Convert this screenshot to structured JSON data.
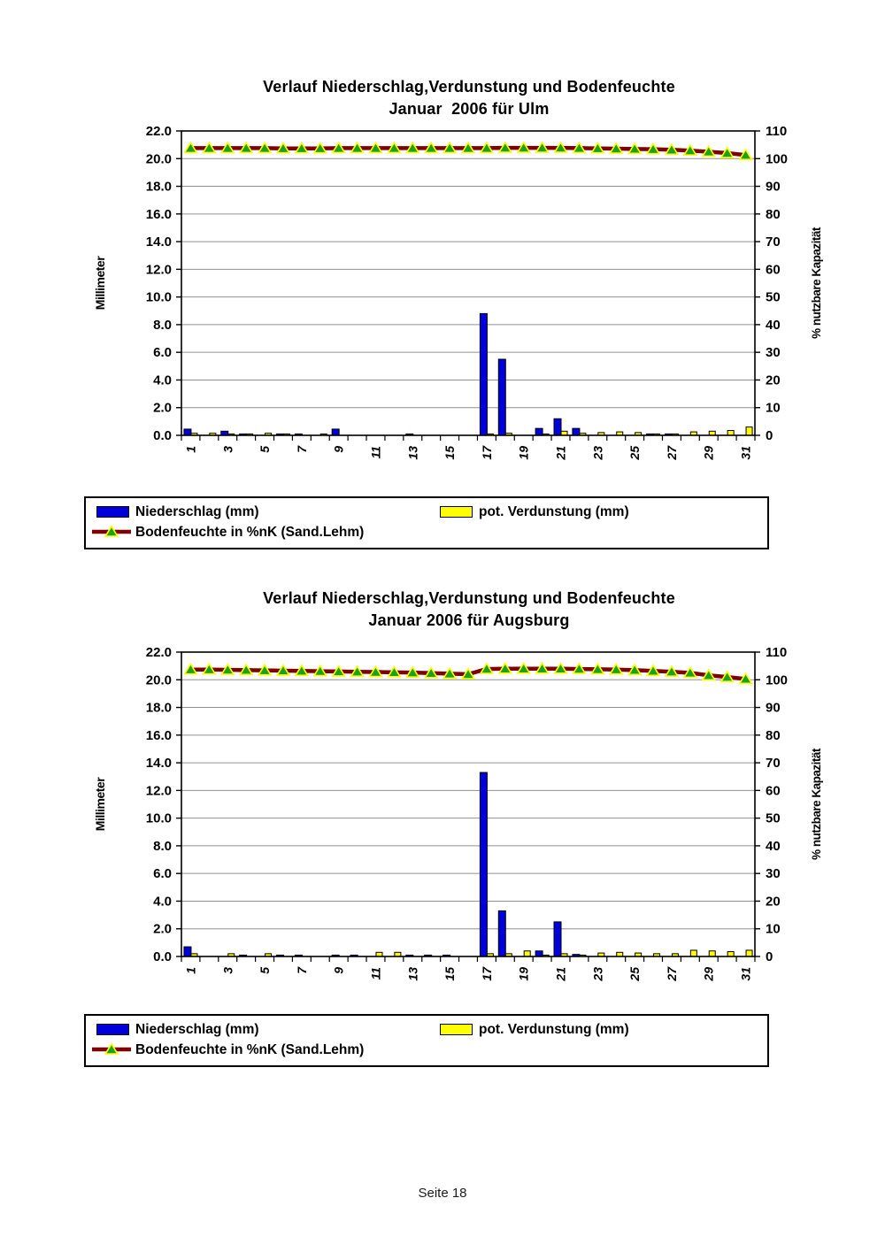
{
  "page": {
    "footer": "Seite 18"
  },
  "chart_data": [
    {
      "type": "bar",
      "title": "Verlauf Niederschlag,Verdunstung und Bodenfeuchte",
      "subtitle": "Januar  2006 für Ulm",
      "x": [
        1,
        2,
        3,
        4,
        5,
        6,
        7,
        8,
        9,
        10,
        11,
        12,
        13,
        14,
        15,
        16,
        17,
        18,
        19,
        20,
        21,
        22,
        23,
        24,
        25,
        26,
        27,
        28,
        29,
        30,
        31
      ],
      "left_axis": {
        "label": "Millimeter",
        "min": 0.0,
        "max": 22.0,
        "step": 2.0
      },
      "right_axis": {
        "label": "% nutzbare Kapazität",
        "min": 0,
        "max": 110,
        "step": 10
      },
      "grid": true,
      "legend_position": "bottom",
      "series": [
        {
          "name": "Niederschlag (mm)",
          "type": "bar",
          "axis": "left",
          "color": "#0000DD",
          "values": [
            0.45,
            0,
            0.3,
            0.1,
            0,
            0.1,
            0.1,
            0,
            0.45,
            0,
            0,
            0,
            0.1,
            0,
            0,
            0,
            8.8,
            5.5,
            0,
            0.5,
            1.2,
            0.5,
            0,
            0,
            0,
            0.1,
            0.1,
            0,
            0,
            0,
            0
          ]
        },
        {
          "name": "pot. Verdunstung (mm)",
          "type": "bar",
          "axis": "left",
          "color": "#FFFF00",
          "values": [
            0.15,
            0.15,
            0.1,
            0.1,
            0.15,
            0.1,
            0,
            0.05,
            0,
            0,
            0,
            0,
            0,
            0,
            0,
            0,
            0.1,
            0.15,
            0,
            0.05,
            0.3,
            0.15,
            0.2,
            0.25,
            0.2,
            0.1,
            0.1,
            0.25,
            0.3,
            0.35,
            0.6
          ]
        },
        {
          "name": "Bodenfeuchte in %nK (Sand.Lehm)",
          "type": "line",
          "axis": "right",
          "color": "#7F0000",
          "marker": "triangle",
          "marker_fill": "#1CA11C",
          "marker_edge": "#FFFF00",
          "values": [
            103.8,
            103.8,
            103.8,
            103.8,
            103.8,
            103.7,
            103.7,
            103.7,
            103.8,
            103.8,
            103.8,
            103.8,
            103.8,
            103.8,
            103.8,
            103.8,
            103.8,
            103.9,
            103.9,
            103.9,
            103.9,
            103.8,
            103.7,
            103.6,
            103.5,
            103.4,
            103.2,
            102.9,
            102.5,
            102.0,
            101.3
          ]
        }
      ]
    },
    {
      "type": "bar",
      "title": "Verlauf Niederschlag,Verdunstung und Bodenfeuchte",
      "subtitle": "Januar 2006 für Augsburg",
      "x": [
        1,
        2,
        3,
        4,
        5,
        6,
        7,
        8,
        9,
        10,
        11,
        12,
        13,
        14,
        15,
        16,
        17,
        18,
        19,
        20,
        21,
        22,
        23,
        24,
        25,
        26,
        27,
        28,
        29,
        30,
        31
      ],
      "left_axis": {
        "label": "Millimeter",
        "min": 0.0,
        "max": 22.0,
        "step": 2.0
      },
      "right_axis": {
        "label": "% nutzbare Kapazität",
        "min": 0,
        "max": 110,
        "step": 10
      },
      "grid": true,
      "legend_position": "bottom",
      "series": [
        {
          "name": "Niederschlag (mm)",
          "type": "bar",
          "axis": "left",
          "color": "#0000DD",
          "values": [
            0.7,
            0,
            0,
            0.1,
            0,
            0.1,
            0.1,
            0,
            0.1,
            0.1,
            0,
            0,
            0.1,
            0.1,
            0.1,
            0,
            13.3,
            3.3,
            0,
            0.4,
            2.5,
            0.15,
            0,
            0,
            0,
            0,
            0,
            0,
            0,
            0,
            0
          ]
        },
        {
          "name": "pot. Verdunstung (mm)",
          "type": "bar",
          "axis": "left",
          "color": "#FFFF00",
          "values": [
            0.2,
            0,
            0.2,
            0,
            0.2,
            0,
            0,
            0,
            0,
            0,
            0.3,
            0.3,
            0,
            0,
            0,
            0,
            0.2,
            0.2,
            0.4,
            0.1,
            0.2,
            0.1,
            0.25,
            0.3,
            0.25,
            0.2,
            0.2,
            0.45,
            0.4,
            0.35,
            0.45
          ]
        },
        {
          "name": "Bodenfeuchte in %nK (Sand.Lehm)",
          "type": "line",
          "axis": "right",
          "color": "#7F0000",
          "marker": "triangle",
          "marker_fill": "#1CA11C",
          "marker_edge": "#FFFF00",
          "values": [
            103.7,
            103.7,
            103.6,
            103.5,
            103.4,
            103.3,
            103.2,
            103.1,
            103.0,
            102.9,
            102.8,
            102.7,
            102.6,
            102.4,
            102.2,
            102.0,
            103.9,
            104.0,
            104.0,
            104.0,
            104.0,
            103.9,
            103.8,
            103.7,
            103.5,
            103.2,
            102.9,
            102.5,
            101.6,
            101.0,
            100.3
          ]
        }
      ]
    }
  ],
  "style": {
    "gridline_color": "#909090",
    "frame_color": "#000000",
    "background": "#FFFFFF"
  }
}
